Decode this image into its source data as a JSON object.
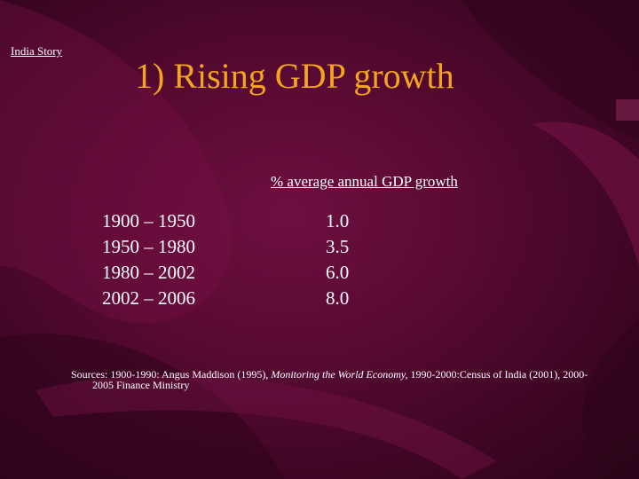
{
  "slide": {
    "section_tag": "India Story",
    "title": "1) Rising GDP growth",
    "table": {
      "value_header": "% average annual GDP growth",
      "rows": [
        {
          "period": "1900 – 1950",
          "value": "1.0"
        },
        {
          "period": "1950 – 1980",
          "value": "3.5"
        },
        {
          "period": "1980 – 2002",
          "value": "6.0"
        },
        {
          "period": "2002 – 2006",
          "value": "8.0"
        }
      ]
    },
    "sources": {
      "prefix": "Sources: 1900-1990: Angus Maddison (1995), ",
      "italic": "Monitoring the World Economy,",
      "suffix": " 1990-2000:Census of India (2001), 2000-",
      "continuation": "2005 Finance Ministry"
    }
  },
  "colors": {
    "background": "#5a0a33",
    "title": "#f3a51e",
    "text": "#ffffff"
  }
}
